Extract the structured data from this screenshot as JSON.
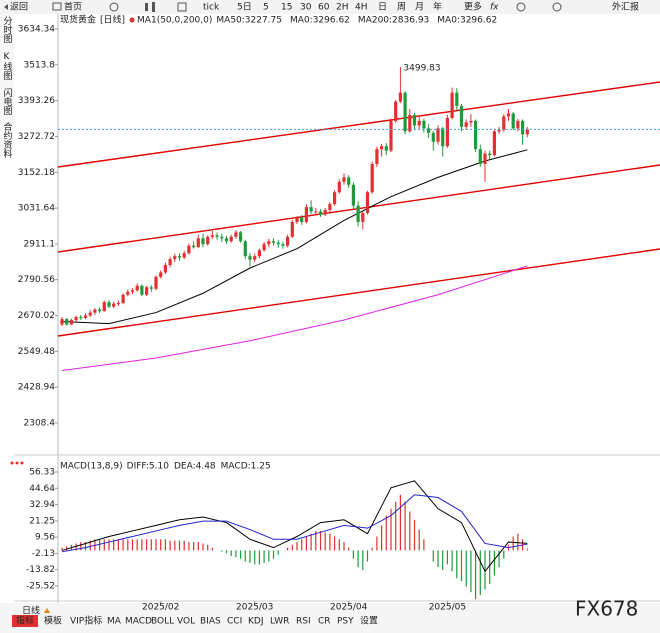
{
  "toolbar": {
    "back": "返回",
    "home": "首页",
    "tick": "tick",
    "periods": [
      "5日",
      "5",
      "15",
      "30",
      "60",
      "2H",
      "4H",
      "日",
      "周",
      "月",
      "年"
    ],
    "more": "更多",
    "fx": "fx",
    "quote": "外汇报"
  },
  "sidebar": [
    "分时图",
    "K线图",
    "闪电图",
    "合约资料"
  ],
  "chart_data": [
    {
      "type": "candlestick",
      "title": "现货黄金",
      "period": "[日线]",
      "indicator": "MA1(50,0,200,0)",
      "legend": [
        {
          "label": "MA50:3227.75",
          "color": "#000000"
        },
        {
          "label": "MA0:3296.62",
          "color": "#2222cc"
        },
        {
          "label": "MA200:2836.93",
          "color": "#e020e0"
        },
        {
          "label": "MA0:3296.62",
          "color": "#f08000"
        }
      ],
      "up_color": "#e23030",
      "down_color": "#1f9a3a",
      "peak_label": 3499.83,
      "ylim": [
        2217.5,
        3664.6
      ],
      "yticks": [
        3634.34,
        3513.8,
        3393.26,
        3272.72,
        3152.18,
        3031.64,
        2911.1,
        2790.56,
        2670.02,
        2549.48,
        2428.94,
        2308.4
      ],
      "ohlc": [
        [
          2640,
          2665,
          2635,
          2658
        ],
        [
          2658,
          2662,
          2636,
          2640
        ],
        [
          2640,
          2660,
          2638,
          2655
        ],
        [
          2655,
          2670,
          2648,
          2665
        ],
        [
          2665,
          2672,
          2655,
          2662
        ],
        [
          2662,
          2678,
          2658,
          2670
        ],
        [
          2670,
          2688,
          2665,
          2680
        ],
        [
          2680,
          2695,
          2672,
          2690
        ],
        [
          2690,
          2698,
          2678,
          2685
        ],
        [
          2685,
          2720,
          2683,
          2715
        ],
        [
          2715,
          2722,
          2695,
          2700
        ],
        [
          2700,
          2716,
          2695,
          2710
        ],
        [
          2710,
          2720,
          2702,
          2712
        ],
        [
          2712,
          2745,
          2708,
          2740
        ],
        [
          2740,
          2758,
          2735,
          2750
        ],
        [
          2750,
          2762,
          2742,
          2755
        ],
        [
          2755,
          2778,
          2750,
          2770
        ],
        [
          2770,
          2775,
          2735,
          2740
        ],
        [
          2740,
          2770,
          2736,
          2765
        ],
        [
          2765,
          2772,
          2750,
          2760
        ],
        [
          2760,
          2805,
          2755,
          2800
        ],
        [
          2800,
          2822,
          2795,
          2815
        ],
        [
          2815,
          2848,
          2810,
          2840
        ],
        [
          2840,
          2868,
          2832,
          2860
        ],
        [
          2860,
          2878,
          2850,
          2870
        ],
        [
          2870,
          2880,
          2855,
          2865
        ],
        [
          2865,
          2888,
          2860,
          2880
        ],
        [
          2880,
          2912,
          2875,
          2905
        ],
        [
          2905,
          2920,
          2895,
          2900
        ],
        [
          2900,
          2942,
          2898,
          2930
        ],
        [
          2930,
          2945,
          2900,
          2910
        ],
        [
          2910,
          2940,
          2905,
          2935
        ],
        [
          2935,
          2955,
          2928,
          2940
        ],
        [
          2940,
          2950,
          2925,
          2935
        ],
        [
          2935,
          2945,
          2918,
          2930
        ],
        [
          2930,
          2938,
          2912,
          2920
        ],
        [
          2920,
          2942,
          2915,
          2935
        ],
        [
          2935,
          2958,
          2928,
          2950
        ],
        [
          2950,
          2955,
          2915,
          2920
        ],
        [
          2920,
          2925,
          2860,
          2870
        ],
        [
          2870,
          2880,
          2835,
          2858
        ],
        [
          2858,
          2878,
          2850,
          2870
        ],
        [
          2870,
          2895,
          2862,
          2890
        ],
        [
          2890,
          2918,
          2885,
          2910
        ],
        [
          2910,
          2928,
          2900,
          2920
        ],
        [
          2920,
          2930,
          2905,
          2915
        ],
        [
          2915,
          2925,
          2898,
          2910
        ],
        [
          2910,
          2918,
          2895,
          2905
        ],
        [
          2905,
          2942,
          2900,
          2935
        ],
        [
          2935,
          2992,
          2930,
          2985
        ],
        [
          2985,
          3005,
          2978,
          3000
        ],
        [
          3000,
          3008,
          2975,
          2985
        ],
        [
          2985,
          3045,
          2980,
          3035
        ],
        [
          3035,
          3058,
          3012,
          3020
        ],
        [
          3020,
          3032,
          3010,
          3020
        ],
        [
          3020,
          3028,
          3002,
          3010
        ],
        [
          3010,
          3032,
          3005,
          3025
        ],
        [
          3025,
          3052,
          3018,
          3045
        ],
        [
          3045,
          3092,
          3040,
          3085
        ],
        [
          3085,
          3128,
          3080,
          3120
        ],
        [
          3120,
          3148,
          3110,
          3135
        ],
        [
          3135,
          3142,
          3100,
          3110
        ],
        [
          3110,
          3118,
          3030,
          3040
        ],
        [
          3040,
          3055,
          2970,
          2985
        ],
        [
          2985,
          3020,
          2960,
          3015
        ],
        [
          3015,
          3090,
          3010,
          3085
        ],
        [
          3085,
          3188,
          3080,
          3180
        ],
        [
          3180,
          3238,
          3170,
          3230
        ],
        [
          3230,
          3248,
          3205,
          3240
        ],
        [
          3240,
          3250,
          3210,
          3225
        ],
        [
          3225,
          3332,
          3220,
          3325
        ],
        [
          3325,
          3395,
          3318,
          3390
        ],
        [
          3390,
          3499.83,
          3385,
          3420
        ],
        [
          3420,
          3425,
          3280,
          3290
        ],
        [
          3290,
          3365,
          3285,
          3345
        ],
        [
          3345,
          3352,
          3295,
          3310
        ],
        [
          3310,
          3338,
          3295,
          3325
        ],
        [
          3325,
          3332,
          3285,
          3300
        ],
        [
          3300,
          3315,
          3268,
          3285
        ],
        [
          3285,
          3290,
          3225,
          3255
        ],
        [
          3255,
          3310,
          3245,
          3300
        ],
        [
          3300,
          3305,
          3205,
          3240
        ],
        [
          3240,
          3345,
          3235,
          3335
        ],
        [
          3335,
          3437,
          3330,
          3420
        ],
        [
          3420,
          3435,
          3360,
          3375
        ],
        [
          3375,
          3382,
          3290,
          3305
        ],
        [
          3305,
          3330,
          3295,
          3320
        ],
        [
          3320,
          3348,
          3305,
          3325
        ],
        [
          3325,
          3330,
          3220,
          3230
        ],
        [
          3230,
          3245,
          3170,
          3180
        ],
        [
          3180,
          3225,
          3120,
          3215
        ],
        [
          3215,
          3225,
          3195,
          3210
        ],
        [
          3210,
          3298,
          3205,
          3290
        ],
        [
          3290,
          3305,
          3280,
          3295
        ],
        [
          3295,
          3348,
          3288,
          3340
        ],
        [
          3340,
          3365,
          3325,
          3350
        ],
        [
          3350,
          3355,
          3295,
          3300
        ],
        [
          3300,
          3332,
          3290,
          3325
        ],
        [
          3325,
          3330,
          3245,
          3280
        ],
        [
          3280,
          3305,
          3270,
          3296.62
        ]
      ],
      "series": [
        {
          "name": "MA50",
          "color": "#000000",
          "x": [
            0,
            10,
            20,
            30,
            40,
            50,
            60,
            70,
            80,
            90,
            99
          ],
          "values": [
            2650,
            2643,
            2680,
            2745,
            2830,
            2895,
            2990,
            3070,
            3135,
            3190,
            3227.75
          ]
        },
        {
          "name": "MA200",
          "color": "#e020e0",
          "x": [
            0,
            20,
            40,
            60,
            80,
            99
          ],
          "values": [
            2485,
            2527,
            2585,
            2655,
            2740,
            2836.93
          ]
        }
      ]
    },
    {
      "type": "macd",
      "title": "MACD(13,8,9)",
      "legend": [
        {
          "label": "DIFF:5.10",
          "color": "#000000"
        },
        {
          "label": "DEA:4.48",
          "color": "#2222cc"
        },
        {
          "label": "MACD:1.25",
          "color": "#e020e0"
        }
      ],
      "ylim": [
        -35.6,
        63.5
      ],
      "yticks": [
        56.33,
        44.64,
        32.94,
        21.25,
        9.56,
        -2.13,
        -13.82,
        -25.52
      ],
      "xticks": [
        {
          "value": 21,
          "label": "2025/02"
        },
        {
          "value": 41,
          "label": "2025/03"
        },
        {
          "value": 61,
          "label": "2025/04"
        },
        {
          "value": 82,
          "label": "2025/05"
        }
      ],
      "up_color": "#e23030",
      "down_color": "#1f9a3a",
      "histogram": [
        2,
        3,
        4,
        5,
        6,
        6,
        7,
        8,
        8,
        8,
        8,
        8,
        8,
        8,
        8,
        8,
        8,
        8,
        8,
        8,
        8,
        8,
        8,
        7,
        7,
        7,
        7,
        6,
        6,
        6,
        5,
        4,
        2,
        0,
        -1,
        -2,
        -4,
        -5,
        -6,
        -8,
        -9,
        -10,
        -10,
        -9,
        -8,
        -6,
        -3,
        0,
        2,
        4,
        6,
        8,
        10,
        12,
        14,
        14,
        13,
        12,
        10,
        8,
        6,
        2,
        -6,
        -12,
        -14,
        -8,
        2,
        10,
        18,
        25,
        30,
        35,
        40,
        35,
        28,
        22,
        15,
        8,
        0,
        -8,
        -12,
        -14,
        -10,
        -15,
        -20,
        -22,
        -26,
        -30,
        -35,
        -32,
        -28,
        -24,
        -18,
        -12,
        -6,
        4,
        10,
        12,
        8,
        1.25
      ],
      "series": [
        {
          "name": "DIFF",
          "color": "#000000",
          "x": [
            0,
            5,
            10,
            15,
            20,
            25,
            30,
            35,
            40,
            45,
            50,
            55,
            60,
            65,
            70,
            75,
            80,
            85,
            90,
            95,
            99
          ],
          "values": [
            0,
            5,
            10,
            14,
            18,
            22,
            24,
            20,
            8,
            2,
            10,
            20,
            22,
            12,
            45,
            50,
            30,
            20,
            -15,
            6,
            5.1
          ]
        },
        {
          "name": "DEA",
          "color": "#2222cc",
          "x": [
            0,
            5,
            10,
            15,
            20,
            25,
            30,
            35,
            40,
            45,
            50,
            55,
            60,
            65,
            70,
            75,
            80,
            85,
            90,
            95,
            99
          ],
          "values": [
            -1,
            2,
            6,
            10,
            14,
            18,
            21,
            21,
            15,
            8,
            8,
            13,
            18,
            16,
            25,
            40,
            38,
            28,
            5,
            2,
            4.48
          ]
        }
      ]
    }
  ],
  "bottom": {
    "period": "日线",
    "tabs": [
      "指标",
      "模板",
      "VIP指标",
      "MA",
      "MACD",
      "BOLL",
      "VOL",
      "BIAS",
      "CCI",
      "KDJ",
      "LWR",
      "RSI",
      "CR",
      "PSY",
      "设置"
    ]
  },
  "watermark": "FX678"
}
